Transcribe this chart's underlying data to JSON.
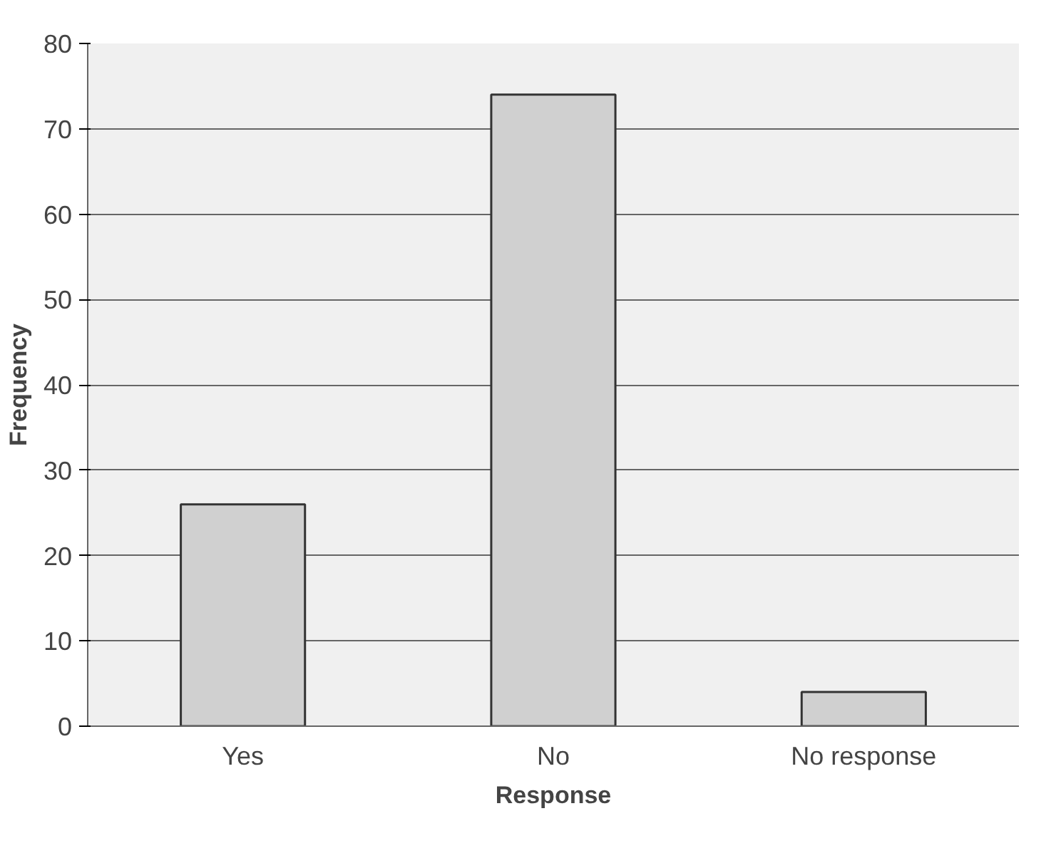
{
  "chart_data": {
    "type": "bar",
    "xlabel": "Response",
    "ylabel": "Frequency",
    "categories": [
      "Yes",
      "No",
      "No response"
    ],
    "values": [
      26,
      74,
      4
    ],
    "color": "#d0d0d0",
    "ylim": [
      0,
      80
    ],
    "yticks": [
      0,
      10,
      20,
      30,
      40,
      50,
      60,
      70,
      80
    ],
    "grid": "y"
  }
}
